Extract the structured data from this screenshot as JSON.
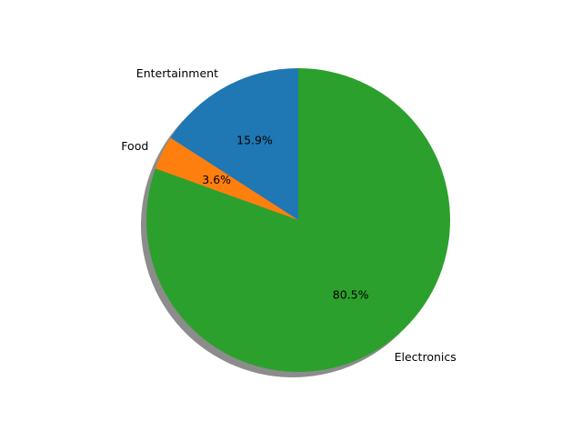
{
  "chart_data": {
    "type": "pie",
    "categories": [
      "Entertainment",
      "Food",
      "Electronics"
    ],
    "values": [
      15.9,
      3.6,
      80.5
    ],
    "percent_labels": [
      "15.9%",
      "3.6%",
      "80.5%"
    ],
    "colors": [
      "#1f77b4",
      "#ff7f0e",
      "#2ca02c"
    ],
    "start_angle_deg": 90,
    "direction": "counterclockwise",
    "shadow": true,
    "title": "",
    "legend": "none"
  }
}
